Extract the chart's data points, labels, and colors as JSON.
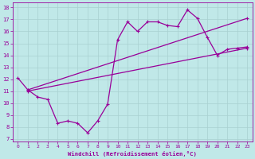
{
  "xlabel": "Windchill (Refroidissement éolien,°C)",
  "bg_color": "#c0e8e8",
  "grid_color": "#a8d0d0",
  "line_color": "#990099",
  "xlim": [
    -0.5,
    23.5
  ],
  "ylim": [
    6.8,
    18.4
  ],
  "yticks": [
    7,
    8,
    9,
    10,
    11,
    12,
    13,
    14,
    15,
    16,
    17,
    18
  ],
  "xticks": [
    0,
    1,
    2,
    3,
    4,
    5,
    6,
    7,
    8,
    9,
    10,
    11,
    12,
    13,
    14,
    15,
    16,
    17,
    18,
    19,
    20,
    21,
    22,
    23
  ],
  "line1_x": [
    0,
    1,
    2,
    3,
    4,
    5,
    6,
    7,
    8,
    9,
    10,
    11,
    12,
    13,
    14,
    15,
    16,
    17,
    18,
    19,
    20,
    21,
    22,
    23
  ],
  "line1_y": [
    12.1,
    11.1,
    10.5,
    10.3,
    8.3,
    8.5,
    8.3,
    7.5,
    8.5,
    9.9,
    15.3,
    16.8,
    16.0,
    16.8,
    16.8,
    16.5,
    16.4,
    17.8,
    17.1,
    15.5,
    14.0,
    14.5,
    14.6,
    14.7
  ],
  "line2_x": [
    1,
    23
  ],
  "line2_y": [
    11.1,
    17.1
  ],
  "line3_x": [
    1,
    23
  ],
  "line3_y": [
    11.0,
    14.6
  ],
  "marker": "+",
  "marker_size": 3.5,
  "linewidth": 0.9
}
